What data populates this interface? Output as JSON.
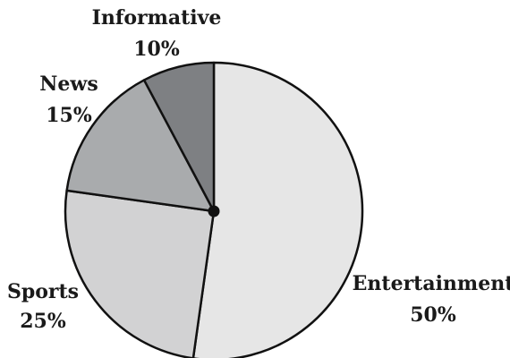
{
  "chart_data": {
    "type": "pie",
    "title": "",
    "slices": [
      {
        "label": "Entertainment",
        "value": 50,
        "value_label": "50%",
        "color": "#e6e6e6"
      },
      {
        "label": "Sports",
        "value": 25,
        "value_label": "25%",
        "color": "#d2d2d3"
      },
      {
        "label": "News",
        "value": 15,
        "value_label": "15%",
        "color": "#a9abad"
      },
      {
        "label": "Informative",
        "value": 10,
        "value_label": "10%",
        "color": "#7e8083"
      }
    ],
    "legend": "none",
    "center_dot": true
  }
}
